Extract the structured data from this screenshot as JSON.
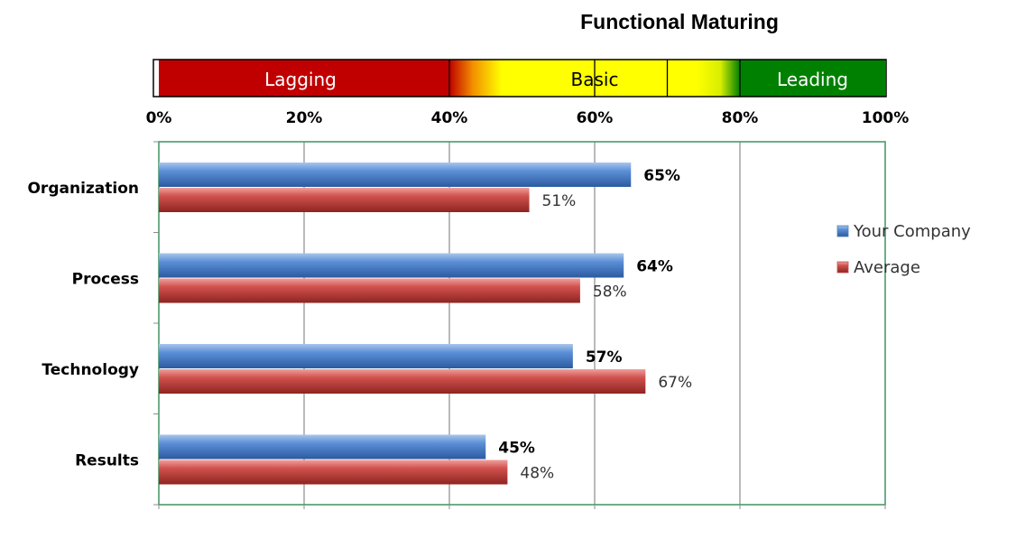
{
  "chart_data": {
    "type": "bar",
    "orientation": "horizontal",
    "title": "Functional Maturing",
    "xlim": [
      0,
      100
    ],
    "x_ticks": [
      "0%",
      "20%",
      "40%",
      "60%",
      "80%",
      "100%"
    ],
    "x_tick_values": [
      0,
      20,
      40,
      60,
      80,
      100
    ],
    "grid": true,
    "legend_position": "right",
    "maturity_scale": [
      {
        "label": "Lagging",
        "from": 0,
        "to": 40,
        "color": "#c00000",
        "text_color": "#ffffff"
      },
      {
        "label": "Basic",
        "from": 40,
        "to": 80,
        "color": "#ffff00",
        "text_color": "#000000"
      },
      {
        "label": "Leading",
        "from": 80,
        "to": 100,
        "color": "#008000",
        "text_color": "#ffffff"
      }
    ],
    "maturity_dividers": [
      60,
      70
    ],
    "categories": [
      "Organization",
      "Process",
      "Technology",
      "Results"
    ],
    "series": [
      {
        "name": "Your Company",
        "color": "#4f81bd",
        "values": [
          65,
          64,
          57,
          45
        ],
        "value_labels": [
          "65%",
          "64%",
          "57%",
          "45%"
        ],
        "label_bold": true
      },
      {
        "name": "Average",
        "color": "#c0504d",
        "values": [
          51,
          58,
          67,
          48
        ],
        "value_labels": [
          "51%",
          "58%",
          "67%",
          "48%"
        ],
        "label_bold": false
      }
    ]
  }
}
